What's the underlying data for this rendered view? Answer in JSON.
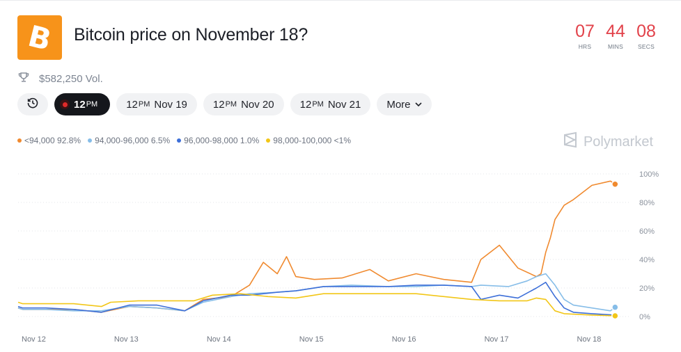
{
  "header": {
    "logo_letter": "B",
    "title": "Bitcoin price on November 18?",
    "volume": "$582,250 Vol."
  },
  "timer": [
    {
      "value": "07",
      "label": "HRS"
    },
    {
      "value": "44",
      "label": "MINS"
    },
    {
      "value": "08",
      "label": "SECS"
    }
  ],
  "tabs": {
    "history_icon": "clock-icon",
    "live": {
      "time": "12",
      "ampm": "PM"
    },
    "items": [
      {
        "time": "12",
        "ampm": "PM",
        "date": "Nov 19"
      },
      {
        "time": "12",
        "ampm": "PM",
        "date": "Nov 20"
      },
      {
        "time": "12",
        "ampm": "PM",
        "date": "Nov 21"
      }
    ],
    "more_label": "More"
  },
  "legend": [
    {
      "label": "<94,000 92.8%",
      "color": "#f08a2f"
    },
    {
      "label": "94,000-96,000 6.5%",
      "color": "#86bde8"
    },
    {
      "label": "96,000-98,000 1.0%",
      "color": "#3d6fd8"
    },
    {
      "label": "98,000-100,000 <1%",
      "color": "#f2c617"
    }
  ],
  "brand": "Polymarket",
  "chart_data": {
    "type": "line",
    "x_ticks": [
      "Nov 12",
      "Nov 13",
      "Nov 14",
      "Nov 15",
      "Nov 16",
      "Nov 17",
      "Nov 18"
    ],
    "y_ticks": [
      "100%",
      "80%",
      "60%",
      "40%",
      "20%",
      "0%"
    ],
    "ylim": [
      0,
      100
    ],
    "grid": "horizontal dotted",
    "series": [
      {
        "name": "<94,000",
        "color": "#f08a2f",
        "x": [
          12.0,
          12.05,
          12.3,
          12.6,
          12.9,
          13.2,
          13.5,
          13.8,
          14.0,
          14.3,
          14.5,
          14.65,
          14.8,
          14.9,
          15.0,
          15.2,
          15.5,
          15.8,
          16.0,
          16.3,
          16.6,
          16.9,
          17.0,
          17.2,
          17.4,
          17.6,
          17.65,
          17.7,
          17.75,
          17.8,
          17.9,
          18.0,
          18.2,
          18.4,
          18.45
        ],
        "values": [
          6,
          5,
          5,
          5,
          3,
          7,
          6,
          4,
          12,
          14,
          22,
          38,
          30,
          42,
          28,
          26,
          27,
          33,
          25,
          30,
          26,
          24,
          40,
          50,
          34,
          28,
          30,
          45,
          55,
          68,
          78,
          82,
          92,
          95,
          92.8
        ]
      },
      {
        "name": "94,000-96,000",
        "color": "#86bde8",
        "x": [
          12.0,
          12.05,
          12.3,
          12.6,
          12.9,
          13.2,
          13.5,
          13.8,
          14.0,
          14.3,
          14.5,
          14.8,
          15.0,
          15.3,
          15.6,
          16.0,
          16.3,
          16.6,
          16.9,
          17.0,
          17.3,
          17.5,
          17.6,
          17.7,
          17.8,
          17.9,
          18.0,
          18.2,
          18.4,
          18.45
        ],
        "values": [
          6,
          5,
          5,
          4,
          4,
          7,
          6,
          4,
          10,
          14,
          16,
          17,
          18,
          21,
          22,
          21,
          21,
          22,
          21,
          22,
          21,
          25,
          28,
          30,
          22,
          12,
          8,
          6,
          4,
          6.5
        ]
      },
      {
        "name": "96,000-98,000",
        "color": "#3d6fd8",
        "x": [
          12.0,
          12.05,
          12.3,
          12.6,
          12.9,
          13.2,
          13.5,
          13.8,
          14.0,
          14.3,
          14.5,
          14.8,
          15.0,
          15.3,
          15.6,
          16.0,
          16.3,
          16.6,
          16.9,
          17.0,
          17.2,
          17.4,
          17.6,
          17.7,
          17.8,
          17.9,
          18.0,
          18.2,
          18.45
        ],
        "values": [
          7,
          6,
          6,
          5,
          3,
          8,
          8,
          4,
          11,
          15,
          15,
          17,
          18,
          21,
          21,
          21,
          22,
          22,
          21,
          12,
          15,
          13,
          20,
          24,
          14,
          6,
          3,
          2,
          1.0
        ]
      },
      {
        "name": "98,000-100,000",
        "color": "#f2c617",
        "x": [
          12.0,
          12.05,
          12.3,
          12.6,
          12.9,
          13.0,
          13.3,
          13.6,
          13.9,
          14.1,
          14.4,
          14.7,
          15.0,
          15.3,
          15.6,
          16.0,
          16.3,
          16.6,
          16.9,
          17.2,
          17.5,
          17.6,
          17.7,
          17.8,
          17.9,
          18.2,
          18.45
        ],
        "values": [
          10,
          9,
          9,
          9,
          7,
          10,
          11,
          11,
          11,
          15,
          16,
          14,
          13,
          16,
          16,
          16,
          16,
          14,
          12,
          11,
          11,
          13,
          12,
          4,
          2,
          1,
          0.5
        ]
      }
    ]
  }
}
